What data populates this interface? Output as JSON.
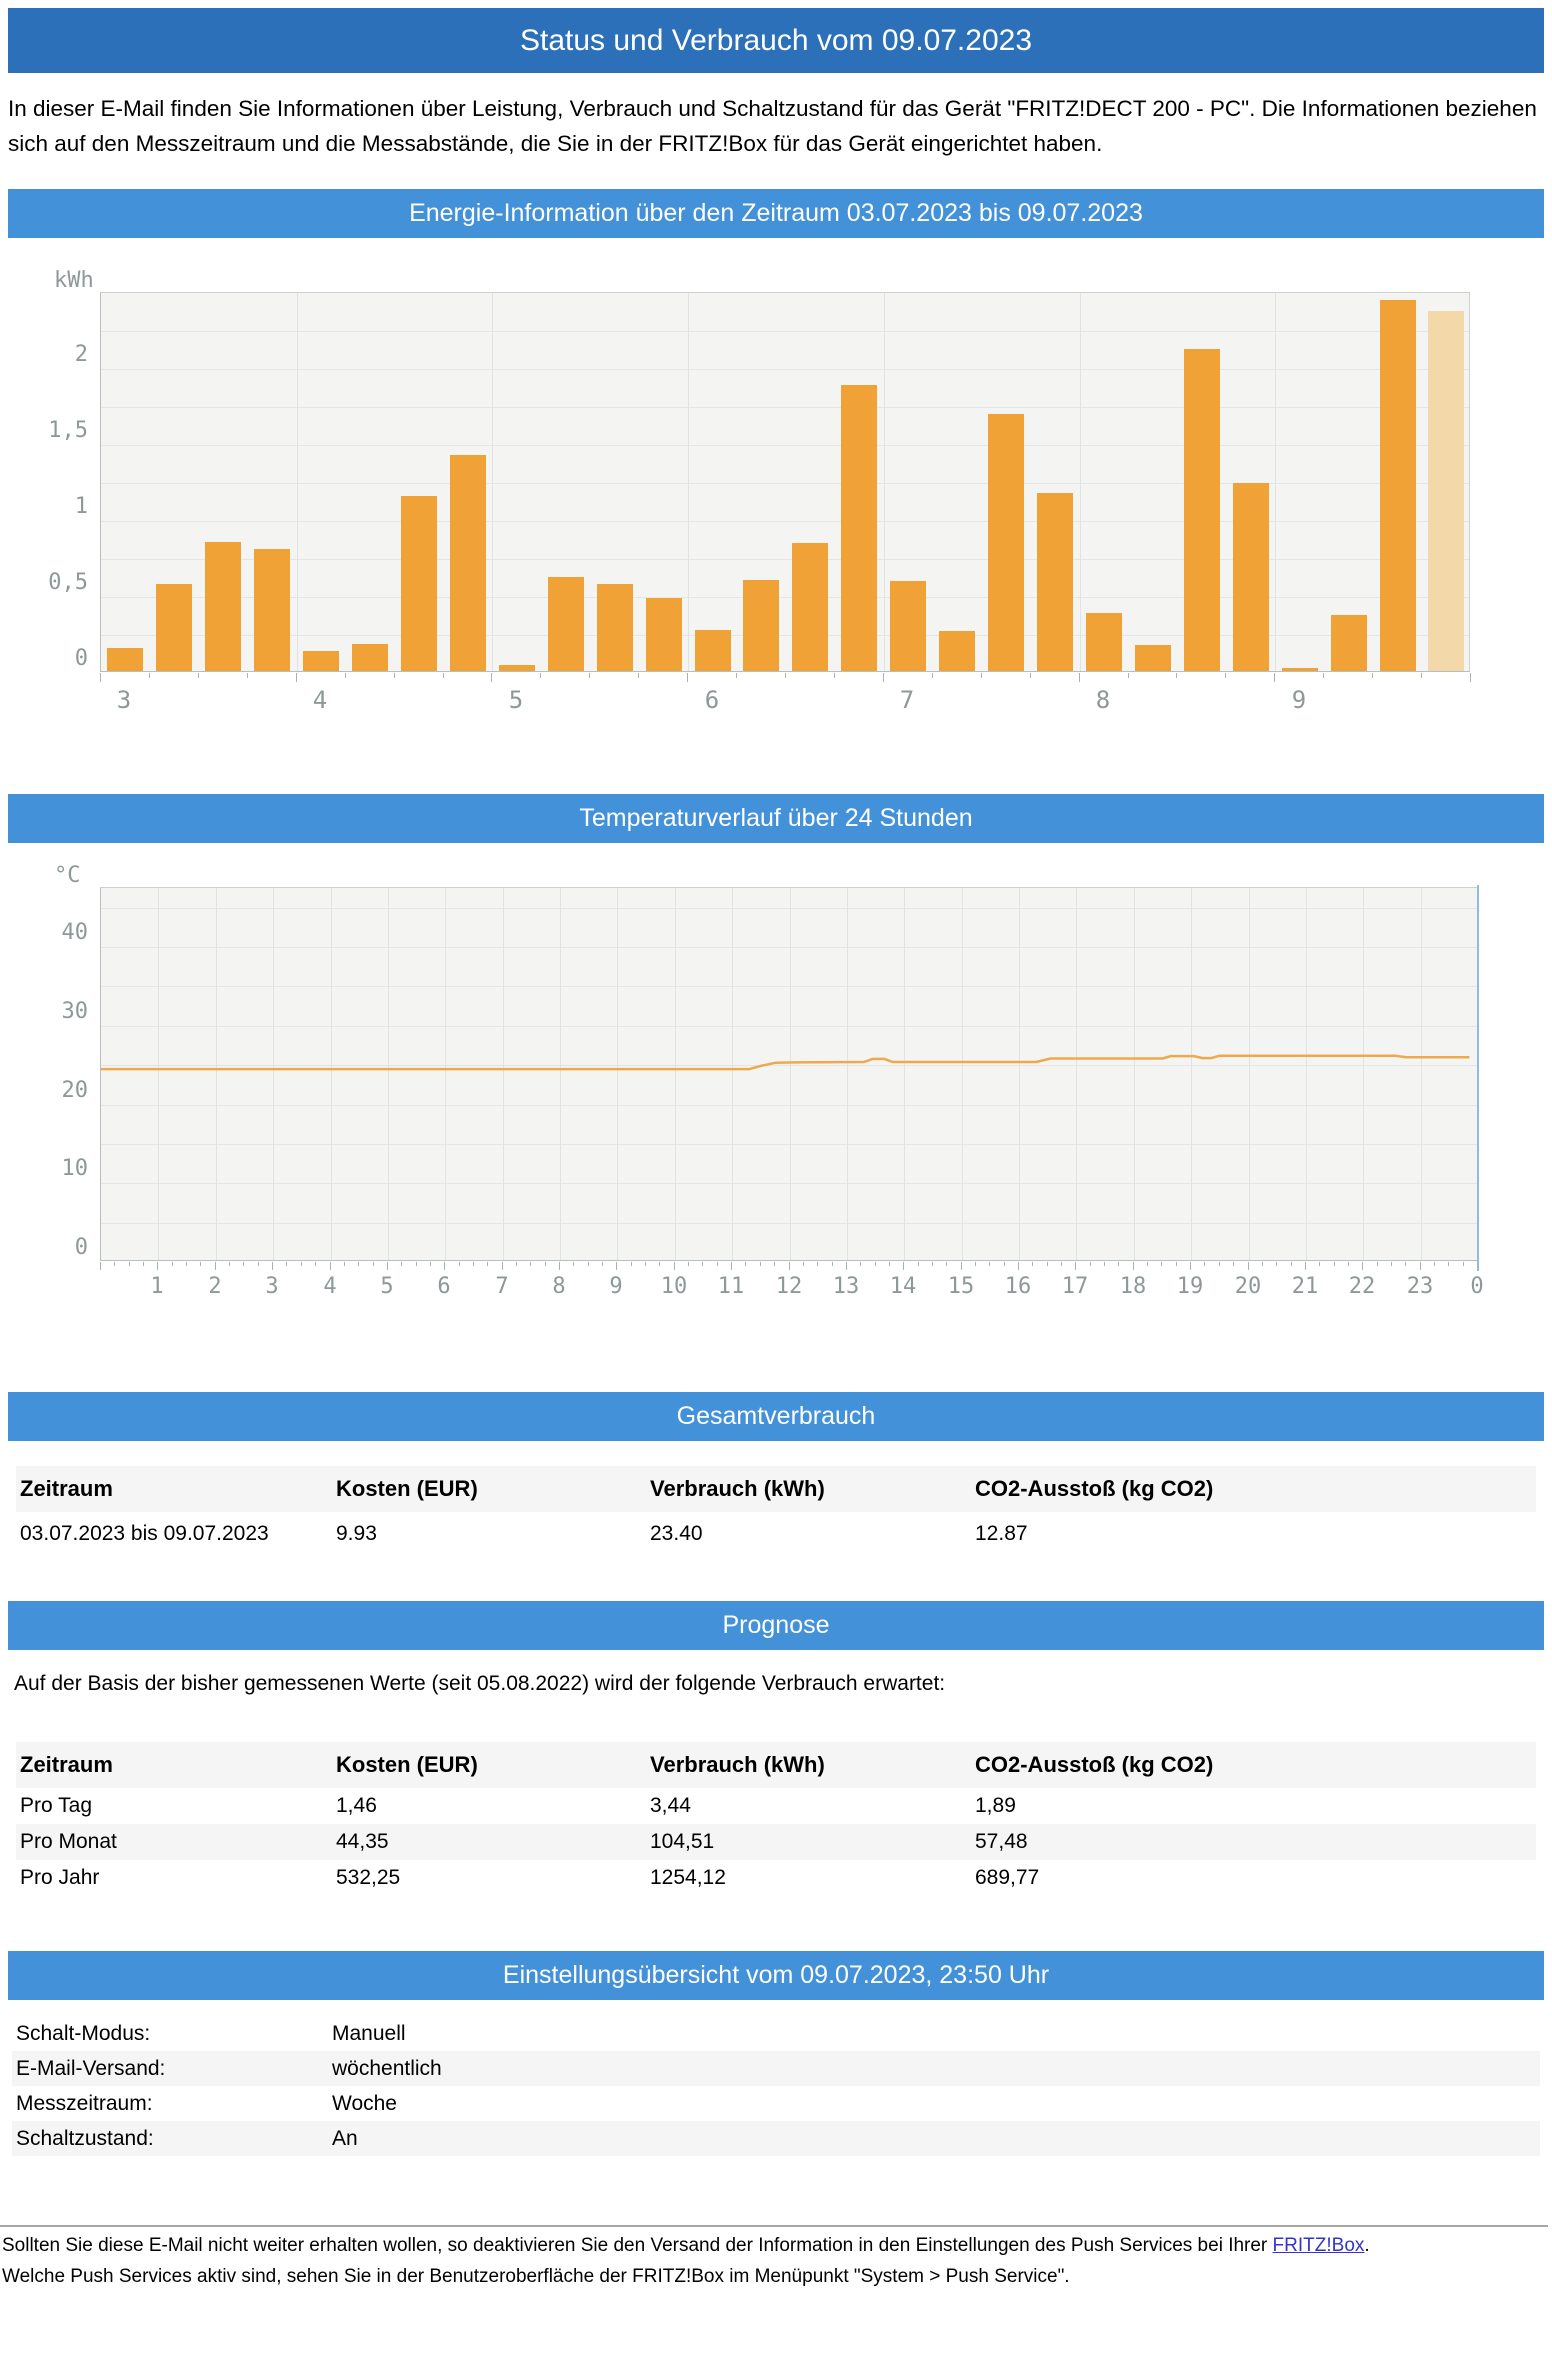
{
  "colors": {
    "header_bar_bg": "#2b70b8",
    "section_bar_bg": "#4391d9",
    "bar_orange": "#f0a237",
    "bar_orange_light": "#f3d9a9",
    "temp_line_orange": "#efa94c",
    "temp_right_axis_blue": "#93bbdf",
    "link_blue": "#3333cc"
  },
  "header": {
    "title": "Status und Verbrauch vom 09.07.2023"
  },
  "intro": {
    "text": "In dieser E-Mail finden Sie Informationen über Leistung, Verbrauch und Schaltzustand für das Gerät \"FRITZ!DECT 200 - PC\". Die Informationen beziehen sich auf den Messzeitraum und die Messabstände, die Sie in der FRITZ!Box für das Gerät eingerichtet haben."
  },
  "sections": {
    "energy": {
      "title": "Energie-Information über den Zeitraum 03.07.2023 bis 09.07.2023"
    },
    "temperature": {
      "title": "Temperaturverlauf über 24 Stunden"
    },
    "total": {
      "title": "Gesamtverbrauch"
    },
    "forecast": {
      "title": "Prognose",
      "intro": "Auf der Basis der bisher gemessenen Werte (seit 05.08.2022) wird der folgende Verbrauch erwartet:"
    },
    "settings": {
      "title": "Einstellungsübersicht vom 09.07.2023, 23:50 Uhr"
    }
  },
  "chart_data": [
    {
      "id": "energy",
      "type": "bar",
      "title": "Energie-Information über den Zeitraum 03.07.2023 bis 09.07.2023",
      "ylabel": "kWh",
      "ylim": [
        0,
        2.5
      ],
      "grid_step": 0.25,
      "grid": true,
      "legend": false,
      "yticks": [
        [
          0,
          "0"
        ],
        [
          0.5,
          "0,5"
        ],
        [
          1,
          "1"
        ],
        [
          1.5,
          "1,5"
        ],
        [
          2,
          "2"
        ]
      ],
      "categories": [
        "3",
        "4",
        "5",
        "6",
        "7",
        "8",
        "9"
      ],
      "bars_per_category": 4,
      "values": [
        0.15,
        0.57,
        0.85,
        0.8,
        0.13,
        0.18,
        1.15,
        1.42,
        0.04,
        0.62,
        0.57,
        0.48,
        0.27,
        0.6,
        0.84,
        1.88,
        0.59,
        0.26,
        1.69,
        1.17,
        0.38,
        0.17,
        2.12,
        1.24,
        0.02,
        0.37,
        2.44,
        2.37
      ],
      "last_bar_faded": true
    },
    {
      "id": "temperature",
      "type": "line",
      "title": "Temperaturverlauf über 24 Stunden",
      "ylabel": "°C",
      "ylim": [
        0,
        47.5
      ],
      "grid_step": 5,
      "grid": true,
      "legend": false,
      "yticks": [
        [
          0,
          "0"
        ],
        [
          10,
          "10"
        ],
        [
          20,
          "20"
        ],
        [
          30,
          "30"
        ],
        [
          40,
          "40"
        ]
      ],
      "xlim": [
        0,
        24
      ],
      "xticks": [
        [
          1,
          "1"
        ],
        [
          2,
          "2"
        ],
        [
          3,
          "3"
        ],
        [
          4,
          "4"
        ],
        [
          5,
          "5"
        ],
        [
          6,
          "6"
        ],
        [
          7,
          "7"
        ],
        [
          8,
          "8"
        ],
        [
          9,
          "9"
        ],
        [
          10,
          "10"
        ],
        [
          11,
          "11"
        ],
        [
          12,
          "12"
        ],
        [
          13,
          "13"
        ],
        [
          14,
          "14"
        ],
        [
          15,
          "15"
        ],
        [
          16,
          "16"
        ],
        [
          17,
          "17"
        ],
        [
          18,
          "18"
        ],
        [
          19,
          "19"
        ],
        [
          20,
          "20"
        ],
        [
          21,
          "21"
        ],
        [
          22,
          "22"
        ],
        [
          23,
          "23"
        ],
        [
          24,
          "0"
        ]
      ],
      "points": [
        [
          0,
          24.5
        ],
        [
          11.3,
          24.5
        ],
        [
          11.5,
          24.9
        ],
        [
          11.75,
          25.3
        ],
        [
          12.1,
          25.35
        ],
        [
          13.3,
          25.4
        ],
        [
          13.45,
          25.8
        ],
        [
          13.65,
          25.8
        ],
        [
          13.8,
          25.4
        ],
        [
          16.3,
          25.4
        ],
        [
          16.55,
          25.85
        ],
        [
          18.5,
          25.85
        ],
        [
          18.65,
          26.15
        ],
        [
          19.05,
          26.15
        ],
        [
          19.2,
          25.9
        ],
        [
          19.35,
          25.9
        ],
        [
          19.5,
          26.2
        ],
        [
          22.55,
          26.2
        ],
        [
          22.75,
          26.0
        ],
        [
          23.85,
          26.0
        ]
      ]
    }
  ],
  "total_table": {
    "headers": [
      "Zeitraum",
      "Kosten (EUR)",
      "Verbrauch (kWh)",
      "CO2-Ausstoß (kg CO2)"
    ],
    "rows": [
      [
        "03.07.2023 bis 09.07.2023",
        "9.93",
        "23.40",
        "12.87"
      ]
    ]
  },
  "forecast_table": {
    "headers": [
      "Zeitraum",
      "Kosten (EUR)",
      "Verbrauch (kWh)",
      "CO2-Ausstoß (kg CO2)"
    ],
    "rows": [
      [
        "Pro Tag",
        "1,46",
        "3,44",
        "1,89"
      ],
      [
        "Pro Monat",
        "44,35",
        "104,51",
        "57,48"
      ],
      [
        "Pro Jahr",
        "532,25",
        "1254,12",
        "689,77"
      ]
    ]
  },
  "settings_table": {
    "rows": [
      [
        "Schalt-Modus:",
        "Manuell"
      ],
      [
        "E-Mail-Versand:",
        "wöchentlich"
      ],
      [
        "Messzeitraum:",
        "Woche"
      ],
      [
        "Schaltzustand:",
        "An"
      ]
    ]
  },
  "footer": {
    "line1_before_link": "Sollten Sie diese E-Mail nicht weiter erhalten wollen, so deaktivieren Sie den Versand der Information in den Einstellungen des Push Services bei Ihrer",
    "link_text": "FRITZ!Box",
    "line1_after_link": ".",
    "line2": "Welche Push Services aktiv sind, sehen Sie in der Benutzeroberfläche der FRITZ!Box im Menüpunkt \"System > Push Service\"."
  }
}
